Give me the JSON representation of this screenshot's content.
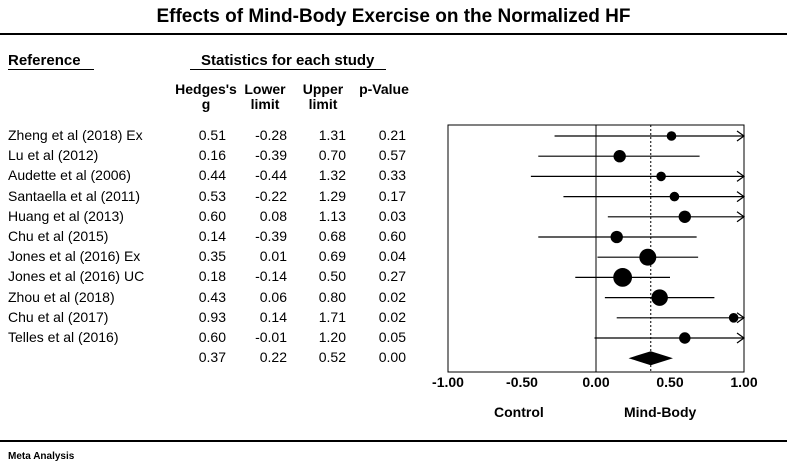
{
  "chart_data": {
    "type": "forest",
    "title": "Effects of Mind-Body Exercise on the Normalized HF",
    "section_headers": {
      "reference": "Reference",
      "statistics": "Statistics for each study"
    },
    "columns": [
      {
        "line1": "Hedges's",
        "line2": "g"
      },
      {
        "line1": "Lower",
        "line2": "limit"
      },
      {
        "line1": "Upper",
        "line2": "limit"
      },
      {
        "line1": "",
        "line2": "p-Value"
      }
    ],
    "studies": [
      {
        "name": "Zheng et al (2018) Ex",
        "g": "0.51",
        "lower": "-0.28",
        "upper": "1.31",
        "p": "0.21",
        "weight": 1.0
      },
      {
        "name": "Lu et al (2012)",
        "g": "0.16",
        "lower": "-0.39",
        "upper": "0.70",
        "p": "0.57",
        "weight": 1.6
      },
      {
        "name": "Audette et al (2006)",
        "g": "0.44",
        "lower": "-0.44",
        "upper": "1.32",
        "p": "0.33",
        "weight": 1.0
      },
      {
        "name": "Santaella et al (2011)",
        "g": "0.53",
        "lower": "-0.22",
        "upper": "1.29",
        "p": "0.17",
        "weight": 1.0
      },
      {
        "name": "Huang et al (2013)",
        "g": "0.60",
        "lower": "0.08",
        "upper": "1.13",
        "p": "0.03",
        "weight": 1.6
      },
      {
        "name": "Chu et al (2015)",
        "g": "0.14",
        "lower": "-0.39",
        "upper": "0.68",
        "p": "0.60",
        "weight": 1.6
      },
      {
        "name": "Jones et al (2016) Ex",
        "g": "0.35",
        "lower": "0.01",
        "upper": "0.69",
        "p": "0.04",
        "weight": 2.6
      },
      {
        "name": "Jones et al (2016) UC",
        "g": "0.18",
        "lower": "-0.14",
        "upper": "0.50",
        "p": "0.27",
        "weight": 3.0
      },
      {
        "name": "Zhou et al (2018)",
        "g": "0.43",
        "lower": "0.06",
        "upper": "0.80",
        "p": "0.02",
        "weight": 2.5
      },
      {
        "name": "Chu et al (2017)",
        "g": "0.93",
        "lower": "0.14",
        "upper": "1.71",
        "p": "0.02",
        "weight": 1.0
      },
      {
        "name": "Telles et al (2016)",
        "g": "0.60",
        "lower": "-0.01",
        "upper": "1.20",
        "p": "0.05",
        "weight": 1.4
      }
    ],
    "summary": {
      "g": "0.37",
      "lower": "0.22",
      "upper": "0.52",
      "p": "0.00"
    },
    "x_axis": {
      "min": -1.0,
      "max": 1.0,
      "ticks": [
        "-1.00",
        "-0.50",
        "0.00",
        "0.50",
        "1.00"
      ],
      "tick_values": [
        -1.0,
        -0.5,
        0.0,
        0.5,
        1.0
      ]
    },
    "favours_left": "Control",
    "favours_right": "Mind-Body",
    "footer": "Meta Analysis"
  }
}
